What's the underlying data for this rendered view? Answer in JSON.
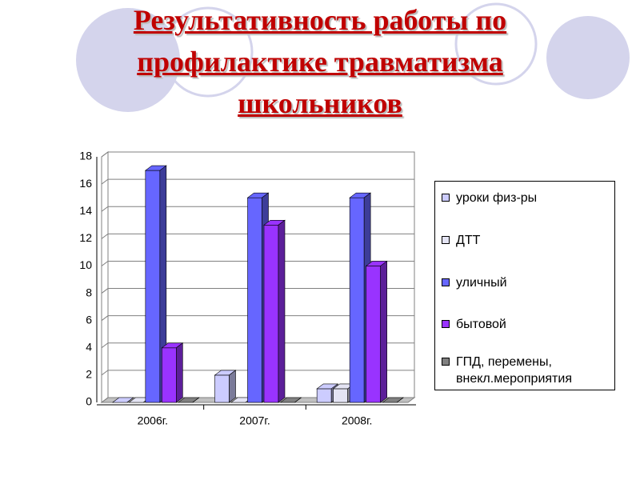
{
  "chart_data": {
    "type": "bar3d",
    "title": [
      "Результативность  работы по",
      "профилактике травматизма",
      "школьников"
    ],
    "categories": [
      "2006г.",
      "2007г.",
      "2008г."
    ],
    "series": [
      {
        "name": "уроки физ-ры",
        "color": "#ccccff",
        "values": [
          0,
          2,
          1
        ]
      },
      {
        "name": "ДТТ",
        "color": "#e4e4f4",
        "values": [
          0,
          0,
          1
        ]
      },
      {
        "name": "уличный",
        "color": "#6666ff",
        "values": [
          17,
          15,
          15
        ]
      },
      {
        "name": "бытовой",
        "color": "#9933ff",
        "values": [
          4,
          13,
          10
        ]
      },
      {
        "name": "ГПД, перемены, внекл.мероприятия",
        "color": "#808080",
        "values": [
          0,
          0,
          0
        ]
      }
    ],
    "ylim": [
      0,
      18
    ],
    "yticks": [
      0,
      2,
      4,
      6,
      8,
      10,
      12,
      14,
      16,
      18
    ],
    "grid": true,
    "legend": "right"
  }
}
